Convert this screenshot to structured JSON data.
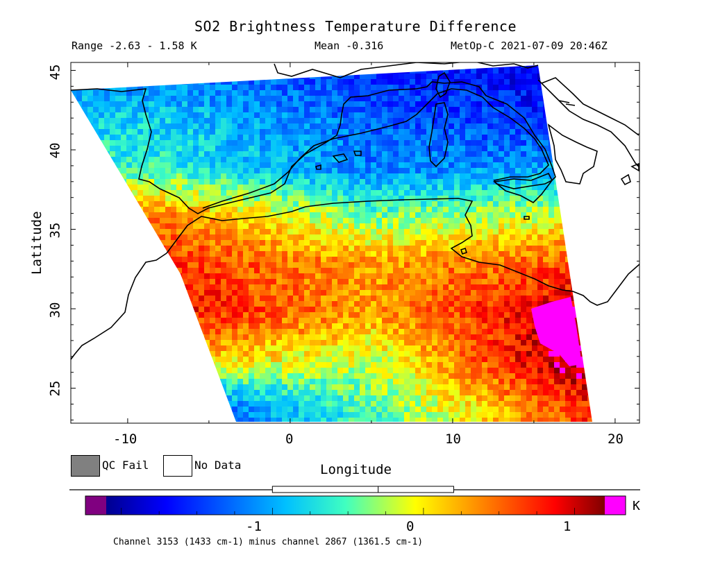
{
  "title": "SO2 Brightness Temperature Difference",
  "range_text": "Range -2.63 - 1.58 K",
  "mean_text": "Mean -0.316",
  "satellite_text": "MetOp-C 2021-07-09 20:46Z",
  "axes": {
    "x_label": "Longitude",
    "y_label": "Latitude",
    "x_ticks": [
      "-10",
      "0",
      "10",
      "20"
    ],
    "y_ticks": [
      "45",
      "40",
      "35",
      "30",
      "25"
    ],
    "x_range": [
      -13.5,
      21.5
    ],
    "y_range": [
      22.8,
      45.5
    ]
  },
  "legend": {
    "qc_fail_label": "QC Fail",
    "no_data_label": "No Data",
    "qc_fail_color": "#808080",
    "no_data_color": "#ffffff"
  },
  "colorbar": {
    "unit": "K",
    "ticks": [
      "-1",
      "0",
      "1"
    ],
    "range": [
      -2.1,
      1.2
    ],
    "under_color": "#800080",
    "over_color": "#ff00ff",
    "box_range": [
      -1.0,
      0.0,
      0.2
    ]
  },
  "channel_text": "Channel 3153 (1433 cm-1) minus channel 2867 (1361.5 cm-1)",
  "chart_data": {
    "type": "heatmap",
    "title": "SO2 Brightness Temperature Difference",
    "xlabel": "Longitude",
    "ylabel": "Latitude",
    "xlim": [
      -13.5,
      21.5
    ],
    "ylim": [
      22.8,
      45.5
    ],
    "value_range": [
      -2.63,
      1.58
    ],
    "mean": -0.316,
    "unit": "K",
    "bands": [
      {
        "lat": 45,
        "values": [
          -1.2,
          -1.5,
          -1.8
        ]
      },
      {
        "lat": 42,
        "values": [
          -0.8,
          -1.3,
          -1.6
        ]
      },
      {
        "lat": 39,
        "values": [
          -0.6,
          -1.2,
          -1.0
        ]
      },
      {
        "lat": 36,
        "values": [
          0.4,
          -0.4,
          -0.1
        ]
      },
      {
        "lat": 33,
        "values": [
          0.7,
          0.3,
          0.6
        ]
      },
      {
        "lat": 30,
        "values": [
          0.9,
          0.3,
          1.1
        ]
      },
      {
        "lat": 27,
        "values": [
          0.2,
          -0.2,
          1.3
        ]
      },
      {
        "lat": 24,
        "values": [
          -1.5,
          -0.5,
          0.7
        ]
      }
    ]
  }
}
